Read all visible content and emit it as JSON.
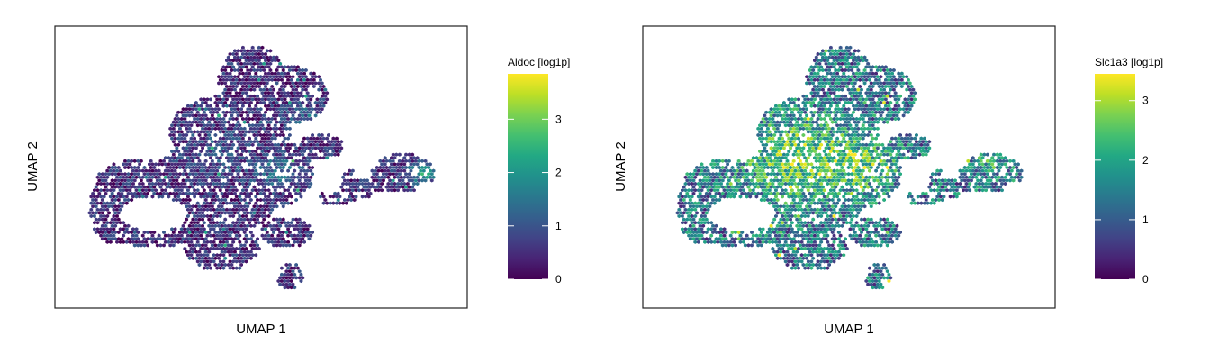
{
  "chart_data": [
    {
      "type": "hexbin",
      "xlabel": "UMAP 1",
      "ylabel": "UMAP 2",
      "legend": {
        "title": "Aldoc [log1p]",
        "ticks": [
          0,
          1,
          2,
          3
        ],
        "range": [
          0,
          3.85
        ],
        "colormap": "viridis"
      },
      "expression": {
        "baseline": 0.45,
        "hotspots": [
          {
            "u": 0.93,
            "v": 0.52,
            "r": 0.04,
            "amp": 1.6
          },
          {
            "u": 0.55,
            "v": 0.52,
            "r": 0.06,
            "amp": 0.9
          },
          {
            "u": 0.38,
            "v": 0.45,
            "r": 0.1,
            "amp": 0.4
          },
          {
            "u": 0.62,
            "v": 0.3,
            "r": 0.05,
            "amp": 0.6
          }
        ],
        "noise": 0.6,
        "seed": 11
      },
      "axes": {
        "x_ticks": [],
        "y_ticks": [],
        "grid": false
      },
      "legend_placement": "right"
    },
    {
      "type": "hexbin",
      "xlabel": "UMAP 1",
      "ylabel": "UMAP 2",
      "legend": {
        "title": "Slc1a3 [log1p]",
        "ticks": [
          0,
          1,
          2,
          3
        ],
        "range": [
          0,
          3.45
        ],
        "colormap": "viridis"
      },
      "expression": {
        "baseline": 1.2,
        "hotspots": [
          {
            "u": 0.38,
            "v": 0.47,
            "r": 0.16,
            "amp": 1.3
          },
          {
            "u": 0.55,
            "v": 0.5,
            "r": 0.08,
            "amp": 0.9
          },
          {
            "u": 0.88,
            "v": 0.48,
            "r": 0.07,
            "amp": 0.6
          }
        ],
        "noise": 1.0,
        "seed": 29
      },
      "axes": {
        "x_ticks": [],
        "y_ticks": [],
        "grid": false
      },
      "legend_placement": "right"
    }
  ],
  "embedding_shape": {
    "description_ignored": false,
    "blobs": [
      {
        "u": 0.48,
        "v": 0.16,
        "rx": 0.09,
        "ry": 0.13
      },
      {
        "u": 0.58,
        "v": 0.22,
        "rx": 0.1,
        "ry": 0.11
      },
      {
        "u": 0.42,
        "v": 0.36,
        "rx": 0.16,
        "ry": 0.14
      },
      {
        "u": 0.38,
        "v": 0.58,
        "rx": 0.17,
        "ry": 0.2
      },
      {
        "u": 0.52,
        "v": 0.52,
        "rx": 0.12,
        "ry": 0.14
      },
      {
        "u": 0.18,
        "v": 0.55,
        "rx": 0.11,
        "ry": 0.08
      },
      {
        "u": 0.12,
        "v": 0.66,
        "rx": 0.07,
        "ry": 0.14
      },
      {
        "u": 0.22,
        "v": 0.74,
        "rx": 0.11,
        "ry": 0.07
      },
      {
        "u": 0.4,
        "v": 0.8,
        "rx": 0.1,
        "ry": 0.1
      },
      {
        "u": 0.57,
        "v": 0.75,
        "rx": 0.07,
        "ry": 0.06
      },
      {
        "u": 0.58,
        "v": 0.92,
        "rx": 0.035,
        "ry": 0.05
      },
      {
        "u": 0.66,
        "v": 0.42,
        "rx": 0.06,
        "ry": 0.05
      },
      {
        "u": 0.77,
        "v": 0.56,
        "rx": 0.06,
        "ry": 0.06
      },
      {
        "u": 0.87,
        "v": 0.52,
        "rx": 0.07,
        "ry": 0.08
      },
      {
        "u": 0.93,
        "v": 0.52,
        "rx": 0.03,
        "ry": 0.05
      },
      {
        "u": 0.7,
        "v": 0.62,
        "rx": 0.05,
        "ry": 0.03
      }
    ],
    "holes": [
      {
        "u": 0.22,
        "v": 0.68,
        "rx": 0.09,
        "ry": 0.065
      },
      {
        "u": 0.77,
        "v": 0.52,
        "rx": 0.025,
        "ry": 0.025
      }
    ],
    "density": 0.78,
    "seed": 5
  }
}
